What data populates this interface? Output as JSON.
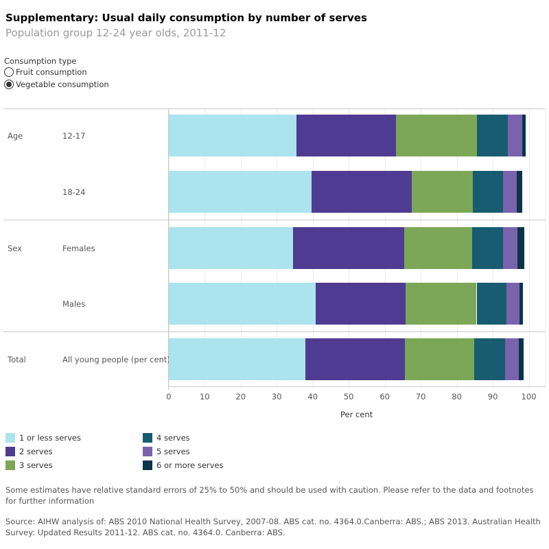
{
  "title": "Supplementary: Usual daily consumption by number of serves",
  "subtitle": "Population group 12-24 year olds, 2011-12",
  "filter": {
    "label": "Consumption type",
    "options": [
      {
        "label": "Fruit consumption",
        "selected": false
      },
      {
        "label": "Vegetable consumption",
        "selected": true
      }
    ]
  },
  "chart_data": {
    "type": "bar",
    "orientation": "horizontal",
    "stacked": true,
    "xlabel": "Per cent",
    "xlim": [
      0,
      100
    ],
    "xticks": [
      "0",
      "10",
      "20",
      "30",
      "40",
      "50",
      "60",
      "70",
      "80",
      "90",
      "100"
    ],
    "grid": true,
    "legend_position": "bottom",
    "groups": [
      {
        "label": "Age",
        "categories": [
          "12-17",
          "18-24"
        ]
      },
      {
        "label": "Sex",
        "categories": [
          "Females",
          "Males"
        ]
      },
      {
        "label": "Total",
        "categories": [
          "All young people (per cent)"
        ]
      }
    ],
    "categories": [
      "12-17",
      "18-24",
      "Females",
      "Males",
      "All young people (per cent)"
    ],
    "series": [
      {
        "name": "1 or less serves",
        "color": "#abe3ee",
        "values": [
          35.5,
          39.6,
          34.6,
          40.9,
          37.9
        ]
      },
      {
        "name": "2 serves",
        "color": "#4f3b91",
        "values": [
          27.6,
          27.9,
          30.8,
          24.9,
          27.7
        ]
      },
      {
        "name": "3 serves",
        "color": "#7ba757",
        "values": [
          22.5,
          16.9,
          18.8,
          19.7,
          19.3
        ]
      },
      {
        "name": "4 serves",
        "color": "#175c70",
        "values": [
          8.5,
          8.5,
          8.7,
          8.2,
          8.5
        ]
      },
      {
        "name": "5 serves",
        "color": "#7a63ad",
        "values": [
          4.0,
          3.8,
          4.0,
          3.8,
          3.9
        ]
      },
      {
        "name": "6 or more serves",
        "color": "#0b344a",
        "values": [
          1.1,
          1.5,
          1.9,
          0.9,
          1.3
        ]
      }
    ]
  },
  "notes": {
    "caution": "Some estimates have relative standard errors of 25% to 50% and should be used with caution. Please refer to the data and footnotes for further information",
    "source": "Source: AIHW analysis of: ABS 2010 National Health Survey, 2007-08. ABS cat. no. 4364.0.Canberra: ABS.; ABS 2013. Australian Health Survey: Updated Results 2011-12. ABS cat. no. 4364.0. Canberra: ABS."
  }
}
